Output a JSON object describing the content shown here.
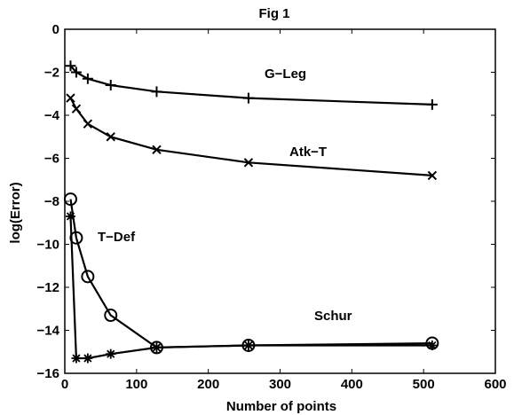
{
  "chart_data": {
    "type": "line",
    "title": "Fig 1",
    "xlabel": "Number of points",
    "ylabel": "log(Error)",
    "xlim": [
      0,
      600
    ],
    "ylim": [
      -16,
      0
    ],
    "xticks": [
      0,
      100,
      200,
      300,
      400,
      500,
      600
    ],
    "yticks": [
      0,
      -2,
      -4,
      -6,
      -8,
      -10,
      -12,
      -14,
      -16
    ],
    "grid": false,
    "series": [
      {
        "name": "G−Leg",
        "marker": "plus",
        "x": [
          8,
          16,
          32,
          64,
          128,
          256,
          512
        ],
        "y": [
          -1.7,
          -2.0,
          -2.3,
          -2.6,
          -2.9,
          -3.2,
          -3.5
        ]
      },
      {
        "name": "Atk−T",
        "marker": "x",
        "x": [
          8,
          16,
          32,
          64,
          128,
          256,
          512
        ],
        "y": [
          -3.2,
          -3.7,
          -4.4,
          -5.0,
          -5.6,
          -6.2,
          -6.8
        ]
      },
      {
        "name": "T−Def",
        "marker": "circle",
        "x": [
          8,
          16,
          32,
          64,
          128,
          256,
          512
        ],
        "y": [
          -7.9,
          -9.7,
          -11.5,
          -13.3,
          -14.8,
          -14.7,
          -14.6
        ]
      },
      {
        "name": "Schur",
        "marker": "star",
        "x": [
          8,
          16,
          32,
          64,
          128,
          256,
          512
        ],
        "y": [
          -8.7,
          -15.3,
          -15.3,
          -15.1,
          -14.8,
          -14.7,
          -14.7
        ]
      }
    ]
  }
}
